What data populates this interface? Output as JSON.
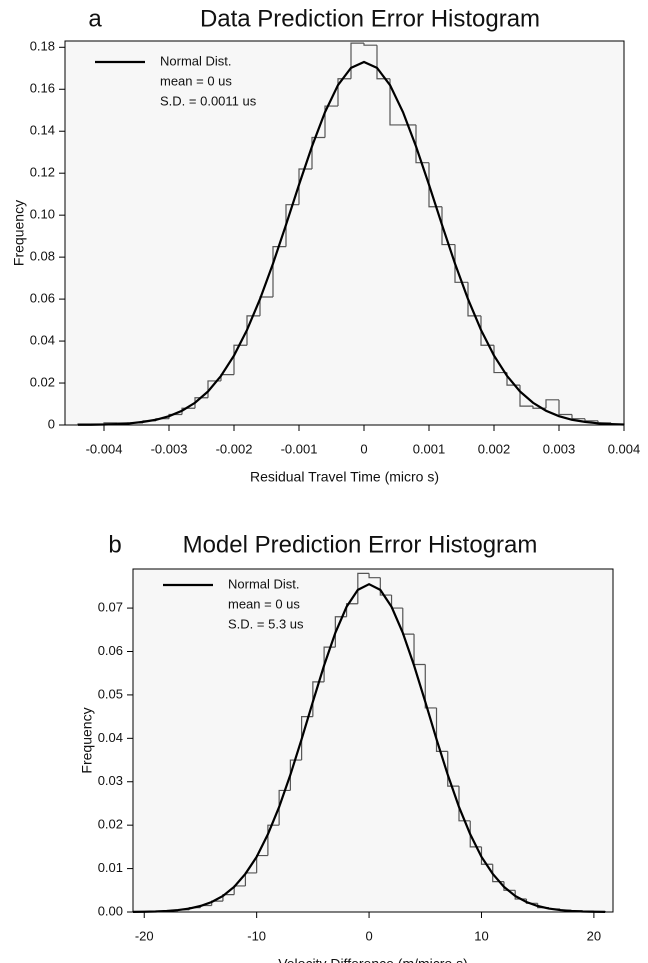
{
  "chart_data": [
    {
      "type": "histogram",
      "label": "a",
      "title": "Data Prediction Error Histogram",
      "xlabel": "Residual Travel Time (micro s)",
      "ylabel": "Frequency",
      "bins": [
        -0.0044,
        -0.0042,
        -0.004,
        -0.0038,
        -0.0036,
        -0.0034,
        -0.0032,
        -0.003,
        -0.0028,
        -0.0026,
        -0.0024,
        -0.0022,
        -0.002,
        -0.0018,
        -0.0016,
        -0.0014,
        -0.0012,
        -0.001,
        -0.0008,
        -0.0006,
        -0.0004,
        -0.0002,
        0,
        0.0002,
        0.0004,
        0.0006,
        0.0008,
        0.001,
        0.0012,
        0.0014,
        0.0016,
        0.0018,
        0.002,
        0.0022,
        0.0024,
        0.0026,
        0.0028,
        0.003,
        0.0032,
        0.0034,
        0.0036,
        0.0038,
        0.004
      ],
      "values": [
        0.0005,
        0.0005,
        0.001,
        0.001,
        0.001,
        0.002,
        0.003,
        0.005,
        0.008,
        0.013,
        0.021,
        0.024,
        0.038,
        0.052,
        0.061,
        0.085,
        0.105,
        0.122,
        0.137,
        0.152,
        0.165,
        0.182,
        0.181,
        0.165,
        0.143,
        0.143,
        0.125,
        0.104,
        0.086,
        0.068,
        0.052,
        0.038,
        0.025,
        0.019,
        0.009,
        0.008,
        0.012,
        0.005,
        0.003,
        0.002,
        0.001,
        0.0005
      ],
      "color": "#555555",
      "series": [
        {
          "name": "Normal Dist.",
          "color": "#000000",
          "x": [
            -0.0044,
            -0.0042,
            -0.004,
            -0.0038,
            -0.0036,
            -0.0034,
            -0.0032,
            -0.003,
            -0.0028,
            -0.0026,
            -0.0024,
            -0.0022,
            -0.002,
            -0.0018,
            -0.0016,
            -0.0014,
            -0.0012,
            -0.001,
            -0.0008,
            -0.0006,
            -0.0004,
            -0.0002,
            0,
            0.0002,
            0.0004,
            0.0006,
            0.0008,
            0.001,
            0.0012,
            0.0014,
            0.0016,
            0.0018,
            0.002,
            0.0022,
            0.0024,
            0.0026,
            0.0028,
            0.003,
            0.0032,
            0.0034,
            0.0036,
            0.0038,
            0.004
          ],
          "values": [
            0.0001,
            0.0001,
            0.0002,
            0.0004,
            0.0008,
            0.0015,
            0.0025,
            0.0042,
            0.0068,
            0.0106,
            0.016,
            0.0234,
            0.0331,
            0.0453,
            0.06,
            0.0769,
            0.0954,
            0.1145,
            0.1328,
            0.1491,
            0.162,
            0.1702,
            0.173,
            0.1702,
            0.162,
            0.1491,
            0.1328,
            0.1145,
            0.0954,
            0.0769,
            0.06,
            0.0453,
            0.0331,
            0.0234,
            0.016,
            0.0106,
            0.0068,
            0.0042,
            0.0025,
            0.0015,
            0.0008,
            0.0004,
            0.0002
          ]
        }
      ],
      "legend": "upper left",
      "legend_notes": [
        "mean = 0 us",
        "S.D. = 0.0011 us"
      ],
      "xlim": [
        -0.0046,
        0.004
      ],
      "xticks": [
        -0.004,
        -0.003,
        -0.002,
        -0.001,
        0,
        0.001,
        0.002,
        0.003,
        0.004
      ],
      "ylim": [
        0,
        0.183
      ],
      "yticks": [
        0,
        0.02,
        0.04,
        0.06,
        0.08,
        {
          "value": 0.1,
          "label": "0.10"
        },
        0.12,
        0.14,
        0.16,
        0.18
      ],
      "grid": false
    },
    {
      "type": "histogram",
      "label": "b",
      "title": "Model Prediction Error Histogram",
      "xlabel": "Velocity Difference (m/micro s)",
      "ylabel": "Frequency",
      "bins": [
        -21,
        -20,
        -19,
        -18,
        -17,
        -16,
        -15,
        -14,
        -13,
        -12,
        -11,
        -10,
        -9,
        -8,
        -7,
        -6,
        -5,
        -4,
        -3,
        -2,
        -1,
        0,
        1,
        2,
        3,
        4,
        5,
        6,
        7,
        8,
        9,
        10,
        11,
        12,
        13,
        14,
        15,
        16,
        17,
        18,
        19,
        20,
        21
      ],
      "values": [
        0.0001,
        0.0001,
        0.0002,
        0.0003,
        0.0005,
        0.001,
        0.0015,
        0.0025,
        0.004,
        0.006,
        0.009,
        0.013,
        0.02,
        0.028,
        0.035,
        0.045,
        0.053,
        0.061,
        0.068,
        0.071,
        0.078,
        0.077,
        0.073,
        0.07,
        0.064,
        0.057,
        0.047,
        0.037,
        0.029,
        0.021,
        0.015,
        0.011,
        0.007,
        0.005,
        0.003,
        0.002,
        0.001,
        0.0007,
        0.0004,
        0.0003,
        0.0002,
        0.0001
      ],
      "color": "#555555",
      "series": [
        {
          "name": "Normal Dist.",
          "color": "#000000",
          "x": [
            -21,
            -20,
            -19,
            -18,
            -17,
            -16,
            -15,
            -14,
            -13,
            -12,
            -11,
            -10,
            -9,
            -8,
            -7,
            -6,
            -5,
            -4,
            -3,
            -2,
            -1,
            0,
            1,
            2,
            3,
            4,
            5,
            6,
            7,
            8,
            9,
            10,
            11,
            12,
            13,
            14,
            15,
            16,
            17,
            18,
            19,
            20,
            21
          ],
          "values": [
            3e-05,
            6e-05,
            0.00012,
            0.00024,
            0.00044,
            0.00079,
            0.00138,
            0.0023,
            0.0037,
            0.0058,
            0.0088,
            0.0127,
            0.0179,
            0.0242,
            0.0316,
            0.0398,
            0.0484,
            0.0568,
            0.0643,
            0.0703,
            0.0742,
            0.0755,
            0.0742,
            0.0703,
            0.0643,
            0.0568,
            0.0484,
            0.0398,
            0.0316,
            0.0242,
            0.0179,
            0.0127,
            0.0088,
            0.0058,
            0.0037,
            0.0023,
            0.00138,
            0.00079,
            0.00044,
            0.00024,
            0.00012,
            6e-05,
            3e-05
          ]
        }
      ],
      "legend": "upper left",
      "legend_notes": [
        "mean = 0 us",
        "S.D. = 5.3 us"
      ],
      "xlim": [
        -21,
        21.7
      ],
      "xticks": [
        -20,
        -10,
        0,
        10,
        20
      ],
      "ylim": [
        0,
        0.079
      ],
      "yticks": [
        {
          "value": 0,
          "label": "0.00"
        },
        0.01,
        0.02,
        0.03,
        0.04,
        0.05,
        0.06,
        0.07
      ],
      "grid": false
    }
  ]
}
